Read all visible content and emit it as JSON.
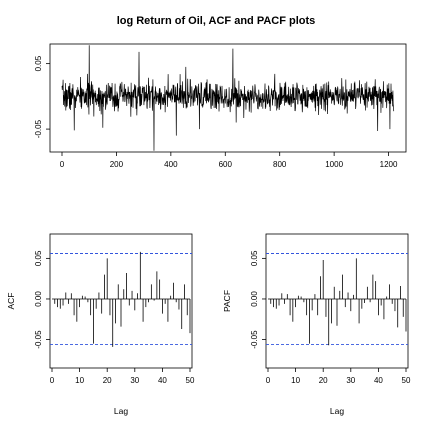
{
  "title": "log Return of Oil, ACF and PACF plots",
  "chart_data": [
    {
      "id": "logreturn",
      "type": "line",
      "title": "log Return of Oil, ACF and PACF plots",
      "xlabel": "",
      "ylabel": "",
      "n": 1220,
      "xlim": [
        0,
        1220
      ],
      "ylim": [
        -0.085,
        0.08
      ],
      "xticks": [
        0,
        200,
        400,
        600,
        800,
        1000,
        1200
      ],
      "yticks": [
        -0.05,
        0.05
      ],
      "ytick_labels": [
        "-0.05",
        "0.05"
      ],
      "noise_sd": 0.011,
      "seed": 7,
      "spikes": [
        {
          "x": 45,
          "y": -0.052
        },
        {
          "x": 100,
          "y": 0.078
        },
        {
          "x": 150,
          "y": -0.048
        },
        {
          "x": 283,
          "y": 0.068
        },
        {
          "x": 338,
          "y": -0.083
        },
        {
          "x": 420,
          "y": -0.06
        },
        {
          "x": 455,
          "y": 0.045
        },
        {
          "x": 505,
          "y": -0.05
        },
        {
          "x": 628,
          "y": 0.073
        },
        {
          "x": 640,
          "y": -0.04
        },
        {
          "x": 1160,
          "y": -0.053
        },
        {
          "x": 1205,
          "y": -0.05
        }
      ]
    },
    {
      "id": "acf",
      "type": "bar",
      "title": "",
      "xlabel": "Lag",
      "ylabel": "ACF",
      "xlim": [
        0,
        50
      ],
      "ylim": [
        -0.085,
        0.08
      ],
      "xticks": [
        0,
        10,
        20,
        30,
        40,
        50
      ],
      "yticks": [
        -0.05,
        0.0,
        0.05
      ],
      "ytick_labels": [
        "-0.05",
        "0.00",
        "0.05"
      ],
      "conf_bound": 0.056,
      "lags": [
        1,
        2,
        3,
        4,
        5,
        6,
        7,
        8,
        9,
        10,
        11,
        12,
        13,
        14,
        15,
        16,
        17,
        18,
        19,
        20,
        21,
        22,
        23,
        24,
        25,
        26,
        27,
        28,
        29,
        30,
        31,
        32,
        33,
        34,
        35,
        36,
        37,
        38,
        39,
        40,
        41,
        42,
        43,
        44,
        45,
        46,
        47,
        48,
        49,
        50
      ],
      "values": [
        -0.006,
        -0.01,
        -0.012,
        -0.008,
        0.008,
        -0.006,
        0.007,
        -0.02,
        -0.028,
        -0.01,
        0.004,
        0.003,
        -0.004,
        -0.02,
        -0.055,
        -0.012,
        0.008,
        -0.018,
        0.03,
        0.05,
        -0.02,
        -0.059,
        -0.03,
        0.018,
        -0.034,
        0.012,
        0.032,
        -0.008,
        0.01,
        -0.014,
        0.007,
        0.058,
        -0.028,
        -0.01,
        -0.004,
        0.018,
        -0.002,
        0.034,
        0.024,
        -0.018,
        -0.006,
        -0.028,
        0.004,
        0.02,
        -0.004,
        -0.013,
        -0.037,
        0.018,
        -0.02,
        -0.042
      ]
    },
    {
      "id": "pacf",
      "type": "bar",
      "title": "",
      "xlabel": "Lag",
      "ylabel": "PACF",
      "xlim": [
        0,
        50
      ],
      "ylim": [
        -0.085,
        0.08
      ],
      "xticks": [
        0,
        10,
        20,
        30,
        40,
        50
      ],
      "yticks": [
        -0.05,
        0.0,
        0.05
      ],
      "ytick_labels": [
        "-0.05",
        "0.00",
        "0.05"
      ],
      "conf_bound": 0.056,
      "lags": [
        1,
        2,
        3,
        4,
        5,
        6,
        7,
        8,
        9,
        10,
        11,
        12,
        13,
        14,
        15,
        16,
        17,
        18,
        19,
        20,
        21,
        22,
        23,
        24,
        25,
        26,
        27,
        28,
        29,
        30,
        31,
        32,
        33,
        34,
        35,
        36,
        37,
        38,
        39,
        40,
        41,
        42,
        43,
        44,
        45,
        46,
        47,
        48,
        49,
        50
      ],
      "values": [
        -0.006,
        -0.01,
        -0.012,
        -0.008,
        0.007,
        -0.006,
        0.006,
        -0.02,
        -0.028,
        -0.01,
        0.004,
        0.003,
        -0.004,
        -0.02,
        -0.055,
        -0.014,
        0.006,
        -0.02,
        0.028,
        0.048,
        -0.022,
        -0.057,
        -0.03,
        0.015,
        -0.033,
        0.01,
        0.03,
        -0.01,
        0.008,
        -0.015,
        0.005,
        0.05,
        -0.03,
        -0.012,
        -0.005,
        0.015,
        -0.004,
        0.03,
        0.022,
        -0.02,
        -0.008,
        -0.025,
        0.003,
        0.018,
        -0.006,
        -0.015,
        -0.035,
        0.016,
        -0.022,
        -0.04
      ]
    }
  ]
}
